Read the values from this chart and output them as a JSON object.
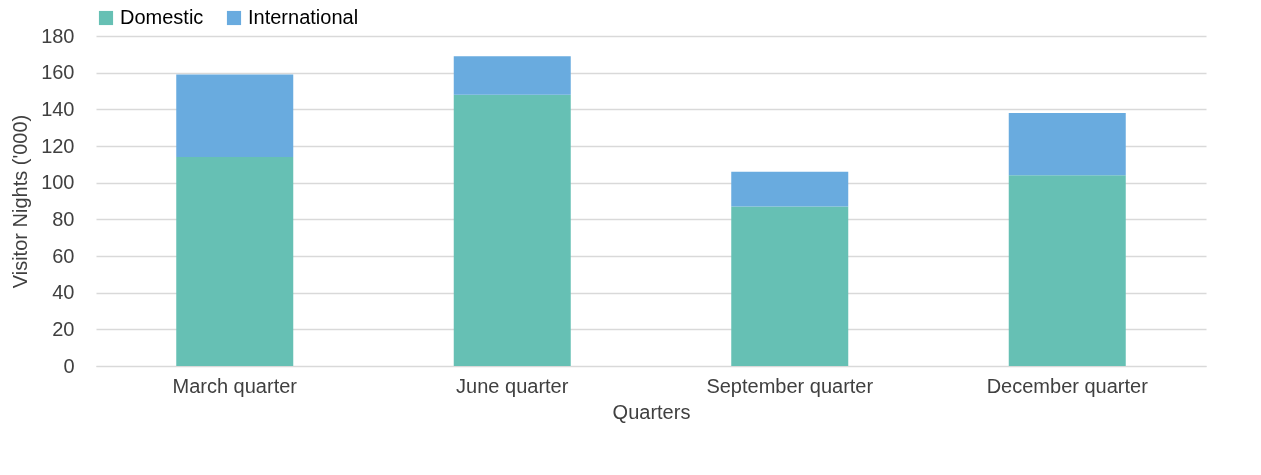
{
  "chart_data": {
    "type": "bar",
    "stacked": true,
    "xlabel": "Quarters",
    "ylabel": "Visitor Nights ('000)",
    "categories": [
      "March quarter",
      "June quarter",
      "September quarter",
      "December quarter"
    ],
    "series": [
      {
        "name": "Domestic",
        "color": "#66c0b4",
        "values": [
          114,
          148,
          87,
          104
        ]
      },
      {
        "name": "International",
        "color": "#69abdf",
        "values": [
          45,
          21,
          19,
          34
        ]
      }
    ],
    "ylim": [
      0,
      180
    ],
    "yticks": [
      0,
      20,
      40,
      60,
      80,
      100,
      120,
      140,
      160,
      180
    ],
    "grid": "y",
    "legend": "top"
  }
}
